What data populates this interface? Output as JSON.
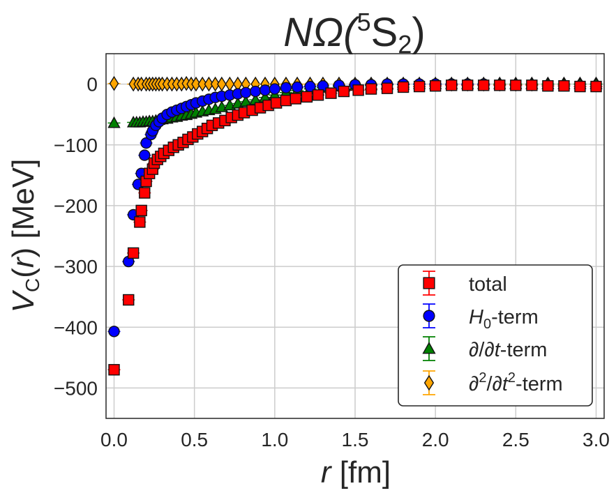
{
  "chart_data": {
    "type": "scatter",
    "title": {
      "base": "NΩ(",
      "sup": "5",
      "mid": "S",
      "sub": "2",
      "end": ")"
    },
    "xlabel": {
      "italic": "r",
      "rest": " [fm]"
    },
    "ylabel": {
      "italic": "V",
      "sub": "C",
      "mid": "(",
      "italic2": "r",
      "end": ") [MeV]"
    },
    "xlim": [
      -0.05,
      3.05
    ],
    "ylim": [
      -550,
      50
    ],
    "xticks": [
      0.0,
      0.5,
      1.0,
      1.5,
      2.0,
      2.5,
      3.0
    ],
    "xtick_labels": [
      "0.0",
      "0.5",
      "1.0",
      "1.5",
      "2.0",
      "2.5",
      "3.0"
    ],
    "yticks": [
      0,
      -100,
      -200,
      -300,
      -400,
      -500
    ],
    "ytick_labels": [
      "0",
      "−100",
      "−200",
      "−300",
      "−400",
      "−500"
    ],
    "grid": true,
    "legend_position": "lower-right",
    "series": [
      {
        "key": "d2",
        "legend": {
          "pre": "∂",
          "sup1": "2",
          "mid": "/∂",
          "italic": "t",
          "sup2": "2",
          "end": "-term"
        },
        "color": "#ffa500",
        "marker": "diamond",
        "points": [
          [
            0.0,
            1
          ],
          [
            0.12,
            0
          ],
          [
            0.15,
            0
          ],
          [
            0.17,
            0
          ],
          [
            0.2,
            0
          ],
          [
            0.22,
            0
          ],
          [
            0.24,
            0
          ],
          [
            0.26,
            0
          ],
          [
            0.28,
            0
          ],
          [
            0.3,
            0
          ],
          [
            0.33,
            0
          ],
          [
            0.36,
            0
          ],
          [
            0.39,
            0
          ],
          [
            0.42,
            0
          ],
          [
            0.45,
            1
          ],
          [
            0.48,
            0
          ],
          [
            0.51,
            0
          ],
          [
            0.55,
            0
          ],
          [
            0.59,
            0
          ],
          [
            0.63,
            0
          ],
          [
            0.67,
            0
          ],
          [
            0.72,
            0
          ],
          [
            0.77,
            0
          ],
          [
            0.82,
            0
          ],
          [
            0.88,
            0
          ],
          [
            0.94,
            0
          ],
          [
            1.0,
            0
          ],
          [
            1.07,
            0
          ],
          [
            1.14,
            0
          ],
          [
            1.22,
            0
          ],
          [
            1.3,
            0
          ],
          [
            1.4,
            0
          ],
          [
            1.5,
            0
          ],
          [
            1.6,
            0
          ],
          [
            1.7,
            0
          ],
          [
            1.8,
            0
          ],
          [
            1.9,
            0
          ],
          [
            2.0,
            0
          ],
          [
            2.1,
            0
          ],
          [
            2.2,
            0
          ],
          [
            2.3,
            0
          ],
          [
            2.4,
            0
          ],
          [
            2.5,
            0
          ],
          [
            2.6,
            0
          ],
          [
            2.7,
            0
          ],
          [
            2.8,
            0
          ],
          [
            2.9,
            0
          ],
          [
            3.0,
            0
          ]
        ]
      },
      {
        "key": "dt",
        "legend": {
          "pre": "∂/∂",
          "italic": "t",
          "end": "-term"
        },
        "color": "#008000",
        "marker": "triangle",
        "points": [
          [
            0.0,
            -64
          ],
          [
            0.12,
            -63
          ],
          [
            0.14,
            -63
          ],
          [
            0.16,
            -63
          ],
          [
            0.18,
            -62
          ],
          [
            0.2,
            -62
          ],
          [
            0.22,
            -61
          ],
          [
            0.24,
            -61
          ],
          [
            0.26,
            -60
          ],
          [
            0.28,
            -59
          ],
          [
            0.3,
            -58
          ],
          [
            0.33,
            -57
          ],
          [
            0.36,
            -55
          ],
          [
            0.39,
            -54
          ],
          [
            0.42,
            -52
          ],
          [
            0.45,
            -51
          ],
          [
            0.48,
            -49
          ],
          [
            0.51,
            -47
          ],
          [
            0.55,
            -45
          ],
          [
            0.59,
            -43
          ],
          [
            0.63,
            -41
          ],
          [
            0.67,
            -38
          ],
          [
            0.72,
            -35
          ],
          [
            0.77,
            -32
          ],
          [
            0.82,
            -29
          ],
          [
            0.88,
            -26
          ],
          [
            0.94,
            -22
          ],
          [
            1.0,
            -18
          ],
          [
            1.07,
            -14
          ],
          [
            1.14,
            -11
          ],
          [
            1.22,
            -8
          ],
          [
            1.3,
            -6
          ],
          [
            1.4,
            -4
          ],
          [
            1.5,
            -3
          ],
          [
            1.6,
            -2
          ],
          [
            1.7,
            -1
          ],
          [
            1.8,
            -1
          ],
          [
            1.9,
            0
          ],
          [
            2.0,
            0
          ],
          [
            2.1,
            0
          ],
          [
            2.2,
            0
          ],
          [
            2.3,
            0
          ],
          [
            2.4,
            0
          ],
          [
            2.5,
            0
          ],
          [
            2.6,
            0
          ],
          [
            2.7,
            0
          ],
          [
            2.8,
            0
          ],
          [
            2.9,
            0
          ],
          [
            3.0,
            0
          ]
        ]
      },
      {
        "key": "h0",
        "legend": {
          "italic": "H",
          "sub": "0",
          "end": "-term"
        },
        "color": "#0000ff",
        "marker": "circle",
        "points": [
          [
            0.0,
            -407
          ],
          [
            0.09,
            -292
          ],
          [
            0.12,
            -215
          ],
          [
            0.15,
            -165
          ],
          [
            0.17,
            -147
          ],
          [
            0.19,
            -117
          ],
          [
            0.2,
            -97
          ],
          [
            0.23,
            -83
          ],
          [
            0.24,
            -77
          ],
          [
            0.26,
            -68
          ],
          [
            0.28,
            -62
          ],
          [
            0.3,
            -56
          ],
          [
            0.33,
            -50
          ],
          [
            0.36,
            -46
          ],
          [
            0.39,
            -43
          ],
          [
            0.42,
            -40
          ],
          [
            0.45,
            -37
          ],
          [
            0.48,
            -34
          ],
          [
            0.51,
            -31
          ],
          [
            0.55,
            -28
          ],
          [
            0.59,
            -25
          ],
          [
            0.63,
            -22
          ],
          [
            0.67,
            -20
          ],
          [
            0.72,
            -18
          ],
          [
            0.77,
            -16
          ],
          [
            0.82,
            -14
          ],
          [
            0.88,
            -12
          ],
          [
            0.94,
            -10
          ],
          [
            1.0,
            -8
          ],
          [
            1.07,
            -6
          ],
          [
            1.14,
            -5
          ],
          [
            1.22,
            -4
          ],
          [
            1.3,
            -3
          ],
          [
            1.4,
            -2
          ],
          [
            1.5,
            -1
          ],
          [
            1.6,
            -1
          ],
          [
            1.7,
            0
          ],
          [
            1.8,
            0
          ],
          [
            1.9,
            0
          ],
          [
            2.0,
            0
          ],
          [
            2.1,
            0
          ],
          [
            2.2,
            0
          ],
          [
            2.3,
            0
          ]
        ]
      },
      {
        "key": "total",
        "legend": {
          "pre": "total"
        },
        "color": "#ff0000",
        "marker": "square",
        "points": [
          [
            0.0,
            -470
          ],
          [
            0.09,
            -355
          ],
          [
            0.12,
            -278
          ],
          [
            0.16,
            -227
          ],
          [
            0.17,
            -208
          ],
          [
            0.19,
            -179
          ],
          [
            0.2,
            -160
          ],
          [
            0.22,
            -147
          ],
          [
            0.24,
            -140
          ],
          [
            0.25,
            -130
          ],
          [
            0.27,
            -124
          ],
          [
            0.29,
            -119
          ],
          [
            0.31,
            -114
          ],
          [
            0.34,
            -109
          ],
          [
            0.37,
            -104
          ],
          [
            0.4,
            -100
          ],
          [
            0.43,
            -96
          ],
          [
            0.46,
            -91
          ],
          [
            0.49,
            -87
          ],
          [
            0.52,
            -82
          ],
          [
            0.55,
            -78
          ],
          [
            0.58,
            -73
          ],
          [
            0.61,
            -68
          ],
          [
            0.65,
            -64
          ],
          [
            0.69,
            -60
          ],
          [
            0.73,
            -55
          ],
          [
            0.77,
            -51
          ],
          [
            0.81,
            -47
          ],
          [
            0.86,
            -43
          ],
          [
            0.91,
            -39
          ],
          [
            0.96,
            -35
          ],
          [
            1.01,
            -31
          ],
          [
            1.07,
            -27
          ],
          [
            1.13,
            -24
          ],
          [
            1.2,
            -21
          ],
          [
            1.27,
            -18
          ],
          [
            1.35,
            -15
          ],
          [
            1.43,
            -12
          ],
          [
            1.52,
            -10
          ],
          [
            1.6,
            -8
          ],
          [
            1.7,
            -7
          ],
          [
            1.8,
            -5
          ],
          [
            1.9,
            -4
          ],
          [
            2.0,
            -3
          ],
          [
            2.1,
            -2
          ],
          [
            2.2,
            -2
          ],
          [
            2.3,
            -2
          ],
          [
            2.4,
            -2
          ],
          [
            2.5,
            -2
          ],
          [
            2.6,
            -2
          ],
          [
            2.7,
            -3
          ],
          [
            2.8,
            -3
          ],
          [
            2.9,
            -4
          ],
          [
            3.0,
            -4
          ]
        ]
      }
    ],
    "legend_order": [
      "total",
      "h0",
      "dt",
      "d2"
    ]
  }
}
